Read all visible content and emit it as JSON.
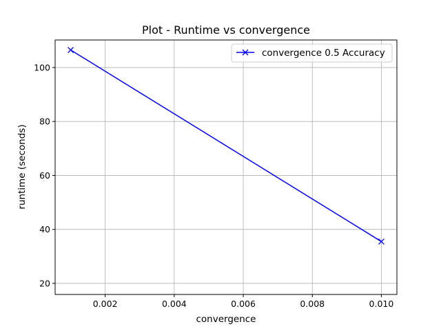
{
  "chart_data": {
    "type": "line",
    "title": "Plot - Runtime vs convergence",
    "xlabel": "convergence",
    "ylabel": "runtime (seconds)",
    "xlim": [
      0.00055,
      0.01045
    ],
    "ylim": [
      15.9,
      110.2
    ],
    "xticks": [
      0.002,
      0.004,
      0.006,
      0.008,
      0.01
    ],
    "xtick_labels": [
      "0.002",
      "0.004",
      "0.006",
      "0.008",
      "0.010"
    ],
    "yticks": [
      20,
      40,
      60,
      80,
      100
    ],
    "ytick_labels": [
      "20",
      "40",
      "60",
      "80",
      "100"
    ],
    "grid": true,
    "legend_position": "top-right",
    "series": [
      {
        "name": "convergence 0.5 Accuracy",
        "color": "#0000ff",
        "marker": "x",
        "x": [
          0.001,
          0.01
        ],
        "y": [
          106.5,
          35.5
        ]
      }
    ]
  }
}
